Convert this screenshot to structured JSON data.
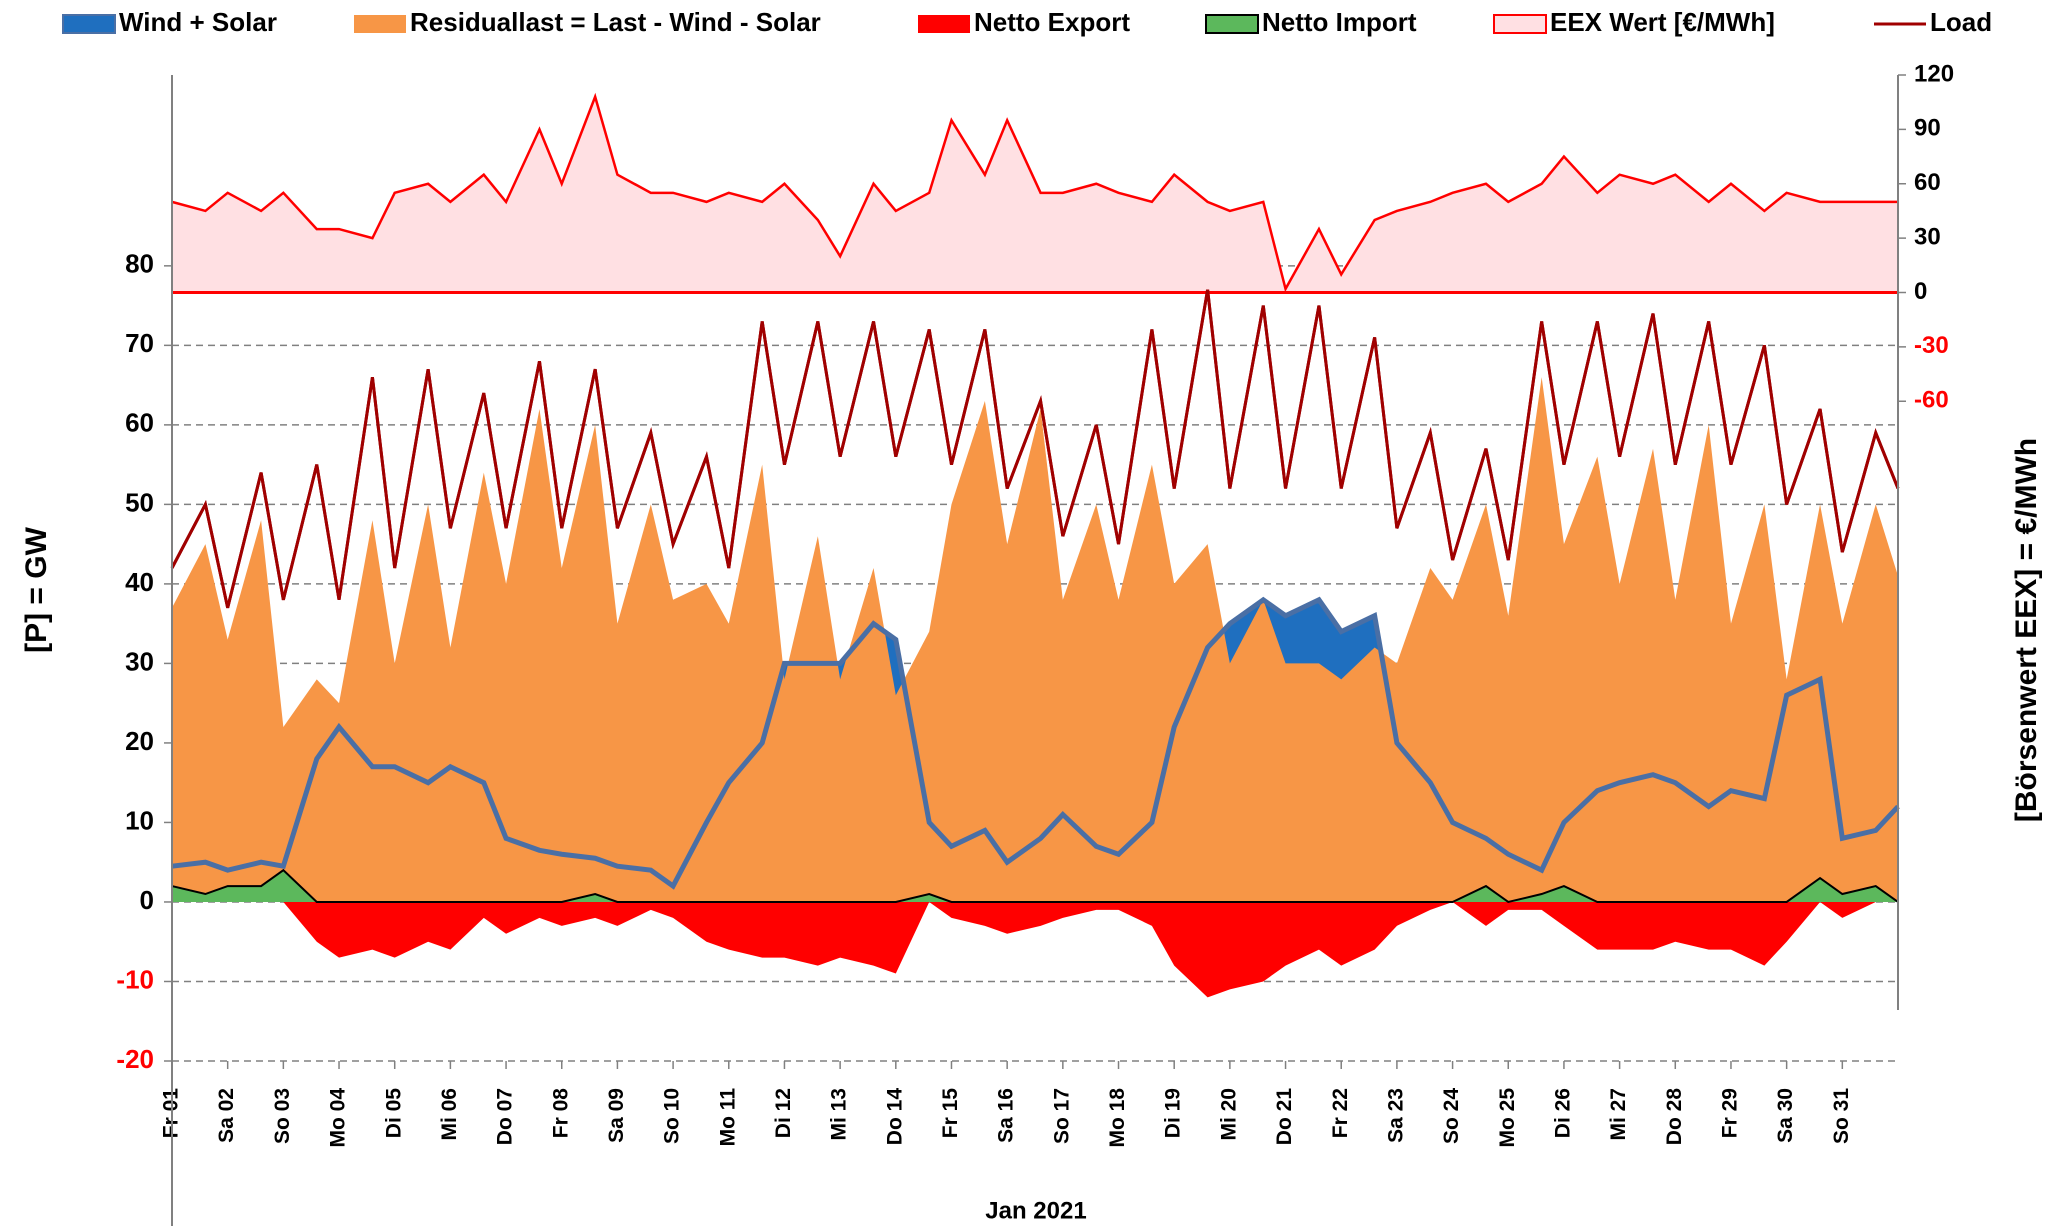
{
  "chart_data": {
    "type": "area",
    "x_title": "Jan 2021",
    "y_title": "[P]  =  GW",
    "y2_title": "[Börsenwert  EEX]   =  €/MWh",
    "x": [
      0,
      0.6,
      1,
      1.6,
      2,
      2.6,
      3,
      3.6,
      4,
      4.6,
      5,
      5.6,
      6,
      6.6,
      7,
      7.6,
      8,
      8.6,
      9,
      9.6,
      10,
      10.6,
      11,
      11.6,
      12,
      12.6,
      13,
      13.6,
      14,
      14.6,
      15,
      15.6,
      16,
      16.6,
      17,
      17.6,
      18,
      18.6,
      19,
      19.6,
      20,
      20.6,
      21,
      21.6,
      22,
      22.6,
      23,
      23.6,
      24,
      24.6,
      25,
      25.6,
      26,
      26.6,
      27,
      27.6,
      28,
      28.6,
      29,
      29.6,
      30,
      30.6,
      31
    ],
    "xlim": [
      0,
      31
    ],
    "xticks": [
      {
        "value": 0,
        "label": "Fr 01"
      },
      {
        "value": 1,
        "label": "Sa 02"
      },
      {
        "value": 2,
        "label": "So 03"
      },
      {
        "value": 3,
        "label": "Mo 04"
      },
      {
        "value": 4,
        "label": "Di 05"
      },
      {
        "value": 5,
        "label": "Mi 06"
      },
      {
        "value": 6,
        "label": "Do 07"
      },
      {
        "value": 7,
        "label": "Fr 08"
      },
      {
        "value": 8,
        "label": "Sa 09"
      },
      {
        "value": 9,
        "label": "So 10"
      },
      {
        "value": 10,
        "label": "Mo 11"
      },
      {
        "value": 11,
        "label": "Di 12"
      },
      {
        "value": 12,
        "label": "Mi 13"
      },
      {
        "value": 13,
        "label": "Do 14"
      },
      {
        "value": 14,
        "label": "Fr 15"
      },
      {
        "value": 15,
        "label": "Sa 16"
      },
      {
        "value": 16,
        "label": "So 17"
      },
      {
        "value": 17,
        "label": "Mo 18"
      },
      {
        "value": 18,
        "label": "Di 19"
      },
      {
        "value": 19,
        "label": "Mi 20"
      },
      {
        "value": 20,
        "label": "Do 21"
      },
      {
        "value": 21,
        "label": "Fr 22"
      },
      {
        "value": 22,
        "label": "Sa 23"
      },
      {
        "value": 23,
        "label": "So 24"
      },
      {
        "value": 24,
        "label": "Mo 25"
      },
      {
        "value": 25,
        "label": "Di 26"
      },
      {
        "value": 26,
        "label": "Mi 27"
      },
      {
        "value": 27,
        "label": "Do 28"
      },
      {
        "value": 28,
        "label": "Fr 29"
      },
      {
        "value": 29,
        "label": "Sa 30"
      },
      {
        "value": 30,
        "label": "So 31"
      }
    ],
    "ylim": [
      -20,
      104
    ],
    "yticks": [
      -20,
      -10,
      0,
      10,
      20,
      30,
      40,
      50,
      60,
      70,
      80
    ],
    "y2lim": [
      -424,
      120
    ],
    "y2ticks": [
      120,
      90,
      60,
      30,
      0,
      -30,
      -60
    ],
    "negative_tick_color": "#ff0000",
    "grid": true,
    "series": [
      {
        "name": "Wind + Solar",
        "color": "#1f6fbf",
        "line_color": "#4a6fa5",
        "style": "area",
        "values": [
          4.5,
          5,
          4,
          5,
          4.5,
          18,
          22,
          17,
          17,
          15,
          17,
          15,
          8,
          6.5,
          6,
          5.5,
          4.5,
          4,
          2,
          10,
          15,
          20,
          30,
          30,
          30,
          35,
          33,
          10,
          7,
          9,
          5,
          8,
          11,
          7,
          6,
          10,
          22,
          32,
          35,
          38,
          36,
          38,
          34,
          36,
          20,
          15,
          10,
          8,
          6,
          4,
          10,
          14,
          15,
          16,
          15,
          12,
          14,
          13,
          26,
          28,
          8,
          9,
          12
        ]
      },
      {
        "name": "Residuallast  =  Last - Wind - Solar",
        "color": "#f79646",
        "style": "area",
        "values": [
          37,
          45,
          33,
          48,
          22,
          28,
          25,
          48,
          30,
          50,
          32,
          54,
          40,
          62,
          42,
          60,
          35,
          50,
          38,
          40,
          35,
          55,
          28,
          46,
          28,
          42,
          26,
          34,
          50,
          63,
          45,
          62,
          38,
          50,
          38,
          55,
          40,
          45,
          30,
          38,
          30,
          30,
          28,
          32,
          30,
          42,
          38,
          50,
          36,
          66,
          45,
          56,
          40,
          57,
          38,
          60,
          35,
          50,
          28,
          50,
          35,
          50,
          41
        ]
      },
      {
        "name": "Netto Export",
        "color": "#ff0000",
        "style": "area",
        "values": [
          0,
          0,
          0,
          0,
          0,
          -5,
          -7,
          -6,
          -7,
          -5,
          -6,
          -2,
          -4,
          -2,
          -3,
          -2,
          -3,
          -1,
          -2,
          -5,
          -6,
          -7,
          -7,
          -8,
          -7,
          -8,
          -9,
          0,
          -2,
          -3,
          -4,
          -3,
          -2,
          -1,
          -1,
          -3,
          -8,
          -12,
          -11,
          -10,
          -8,
          -6,
          -8,
          -6,
          -3,
          -1,
          0,
          -3,
          -1,
          -1,
          -3,
          -6,
          -6,
          -6,
          -5,
          -6,
          -6,
          -8,
          -5,
          0,
          -2,
          0,
          0
        ]
      },
      {
        "name": "Netto Import",
        "color": "#5cb85c",
        "line_color": "#000000",
        "style": "area",
        "values": [
          2,
          1,
          2,
          2,
          4,
          0,
          0,
          0,
          0,
          0,
          0,
          0,
          0,
          0,
          0,
          1,
          0,
          0,
          0,
          0,
          0,
          0,
          0,
          0,
          0,
          0,
          0,
          1,
          0,
          0,
          0,
          0,
          0,
          0,
          0,
          0,
          0,
          0,
          0,
          0,
          0,
          0,
          0,
          0,
          0,
          0,
          0,
          2,
          0,
          1,
          2,
          0,
          0,
          0,
          0,
          0,
          0,
          0,
          0,
          3,
          1,
          2,
          0
        ]
      },
      {
        "name": "EEX Wert [€/MWh]",
        "color": "#ff0000",
        "fill": "#ffe0e3",
        "style": "area",
        "axis": "y2",
        "values": [
          50,
          45,
          55,
          45,
          55,
          35,
          35,
          30,
          55,
          60,
          50,
          65,
          50,
          90,
          60,
          108,
          65,
          55,
          55,
          50,
          55,
          50,
          60,
          40,
          20,
          60,
          45,
          55,
          95,
          65,
          95,
          55,
          55,
          60,
          55,
          50,
          65,
          50,
          45,
          50,
          2,
          35,
          10,
          40,
          45,
          50,
          55,
          60,
          50,
          60,
          75,
          55,
          65,
          60,
          65,
          50,
          60,
          45,
          55,
          50,
          50,
          50,
          50
        ]
      },
      {
        "name": "Load",
        "color": "#a00000",
        "style": "line",
        "values": [
          42,
          50,
          37,
          54,
          38,
          55,
          38,
          66,
          42,
          67,
          47,
          64,
          47,
          68,
          47,
          67,
          47,
          59,
          45,
          56,
          42,
          73,
          55,
          73,
          56,
          73,
          56,
          72,
          55,
          72,
          52,
          63,
          46,
          60,
          45,
          72,
          52,
          77,
          52,
          75,
          52,
          75,
          52,
          71,
          47,
          59,
          43,
          57,
          43,
          73,
          55,
          73,
          56,
          74,
          55,
          73,
          55,
          70,
          50,
          62,
          44,
          59,
          52
        ]
      }
    ]
  }
}
